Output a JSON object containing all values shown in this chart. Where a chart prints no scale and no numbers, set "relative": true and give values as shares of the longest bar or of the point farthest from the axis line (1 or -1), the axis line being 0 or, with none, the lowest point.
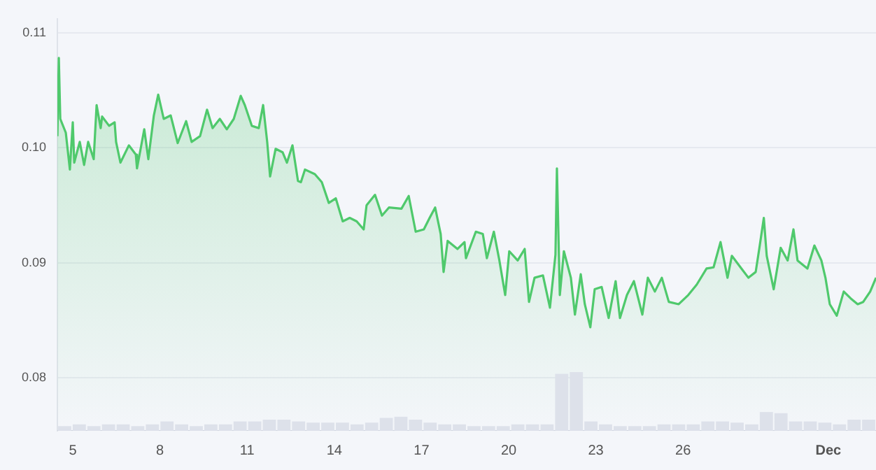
{
  "chart_data": [
    {
      "type": "area",
      "color": "#4fc96c",
      "grid": "y",
      "xlim": [
        4.47,
        32.64
      ],
      "ylim": [
        0.0754,
        0.1112
      ],
      "xticks": [
        5,
        8,
        11,
        14,
        17,
        20,
        23,
        26,
        {
          "value": 31,
          "label": "Dec"
        }
      ],
      "yticks": [
        0.08,
        0.09,
        {
          "value": 0.1,
          "label": "0.10"
        },
        0.11
      ],
      "x": [
        4.47,
        4.52,
        4.57,
        4.76,
        4.9,
        5.0,
        5.05,
        5.24,
        5.39,
        5.53,
        5.72,
        5.82,
        5.96,
        6.01,
        6.25,
        6.44,
        6.49,
        6.64,
        6.93,
        7.17,
        7.21,
        7.46,
        7.6,
        7.79,
        7.94,
        8.13,
        8.37,
        8.61,
        8.9,
        9.09,
        9.38,
        9.62,
        9.81,
        10.06,
        10.3,
        10.54,
        10.78,
        10.92,
        11.16,
        11.4,
        11.55,
        11.69,
        11.79,
        11.98,
        12.22,
        12.37,
        12.56,
        12.75,
        12.85,
        12.99,
        13.33,
        13.57,
        13.81,
        14.05,
        14.29,
        14.53,
        14.77,
        15.01,
        15.11,
        15.4,
        15.64,
        15.88,
        16.31,
        16.56,
        16.8,
        17.08,
        17.28,
        17.47,
        17.66,
        17.76,
        17.9,
        18.24,
        18.48,
        18.53,
        18.87,
        19.11,
        19.25,
        19.49,
        19.68,
        19.88,
        20.02,
        20.31,
        20.55,
        20.7,
        20.89,
        21.18,
        21.42,
        21.61,
        21.66,
        21.76,
        21.9,
        22.14,
        22.28,
        22.48,
        22.62,
        22.81,
        22.96,
        23.2,
        23.44,
        23.68,
        23.83,
        24.07,
        24.31,
        24.6,
        24.79,
        25.03,
        25.27,
        25.51,
        25.85,
        26.18,
        26.47,
        26.81,
        27.05,
        27.29,
        27.53,
        27.68,
        28.01,
        28.25,
        28.5,
        28.64,
        28.78,
        28.88,
        29.12,
        29.36,
        29.6,
        29.8,
        29.94,
        30.28,
        30.52,
        30.76,
        30.9,
        31.05,
        31.29,
        31.53,
        31.77,
        32.01,
        32.2,
        32.44,
        32.64
      ],
      "values": [
        0.101,
        0.1078,
        0.1025,
        0.1013,
        0.0981,
        0.1022,
        0.0987,
        0.1005,
        0.0985,
        0.1005,
        0.099,
        0.1037,
        0.1017,
        0.1027,
        0.1019,
        0.1022,
        0.1005,
        0.0987,
        0.1002,
        0.0994,
        0.0982,
        0.1016,
        0.099,
        0.1028,
        0.1046,
        0.1025,
        0.1028,
        0.1004,
        0.1023,
        0.1005,
        0.101,
        0.1033,
        0.1017,
        0.1025,
        0.1016,
        0.1025,
        0.1045,
        0.1037,
        0.1019,
        0.1017,
        0.1037,
        0.1005,
        0.0975,
        0.0999,
        0.0996,
        0.0987,
        0.1002,
        0.0971,
        0.097,
        0.0981,
        0.0977,
        0.097,
        0.0952,
        0.0956,
        0.0936,
        0.0939,
        0.0936,
        0.0929,
        0.095,
        0.0959,
        0.0941,
        0.0948,
        0.0947,
        0.0958,
        0.0927,
        0.0929,
        0.0939,
        0.0948,
        0.0925,
        0.0892,
        0.0919,
        0.0912,
        0.0918,
        0.0904,
        0.0927,
        0.0925,
        0.0904,
        0.0927,
        0.0902,
        0.0872,
        0.091,
        0.0902,
        0.0912,
        0.0866,
        0.0887,
        0.0889,
        0.0861,
        0.0907,
        0.0982,
        0.0872,
        0.091,
        0.0887,
        0.0855,
        0.089,
        0.0864,
        0.0844,
        0.0877,
        0.0879,
        0.0852,
        0.0884,
        0.0852,
        0.0872,
        0.0884,
        0.0855,
        0.0887,
        0.0875,
        0.0887,
        0.0866,
        0.0864,
        0.0872,
        0.0881,
        0.0895,
        0.0896,
        0.0918,
        0.0887,
        0.0906,
        0.0895,
        0.0887,
        0.0892,
        0.0915,
        0.0939,
        0.0906,
        0.0877,
        0.0913,
        0.0902,
        0.0929,
        0.0902,
        0.0895,
        0.0915,
        0.0902,
        0.0887,
        0.0864,
        0.0854,
        0.0875,
        0.0869,
        0.0864,
        0.0866,
        0.0875,
        0.0887
      ]
    },
    {
      "type": "bar",
      "relative": true,
      "tick_labels": false,
      "color": "#dde1ea",
      "categories": [
        null,
        null,
        null,
        null,
        null,
        null,
        null,
        null,
        null,
        null,
        null,
        null,
        null,
        null,
        null,
        null,
        null,
        null,
        null,
        null,
        null,
        null,
        null,
        null,
        null,
        null,
        null,
        null,
        null,
        null,
        null,
        null,
        null,
        null,
        null,
        null,
        null,
        null,
        null,
        null,
        null,
        null,
        null,
        null,
        null,
        null,
        null,
        null,
        null,
        null,
        null,
        null,
        null,
        null,
        null,
        null
      ],
      "values": [
        0.08,
        0.11,
        0.08,
        0.11,
        0.11,
        0.08,
        0.11,
        0.16,
        0.11,
        0.08,
        0.11,
        0.11,
        0.16,
        0.16,
        0.19,
        0.19,
        0.16,
        0.14,
        0.14,
        0.14,
        0.11,
        0.14,
        0.22,
        0.24,
        0.19,
        0.14,
        0.11,
        0.11,
        0.08,
        0.08,
        0.08,
        0.11,
        0.11,
        0.11,
        0.97,
        1,
        0.16,
        0.11,
        0.08,
        0.08,
        0.08,
        0.11,
        0.11,
        0.11,
        0.16,
        0.16,
        0.14,
        0.11,
        0.32,
        0.3,
        0.16,
        0.16,
        0.14,
        0.11,
        0.19,
        0.19
      ]
    }
  ]
}
